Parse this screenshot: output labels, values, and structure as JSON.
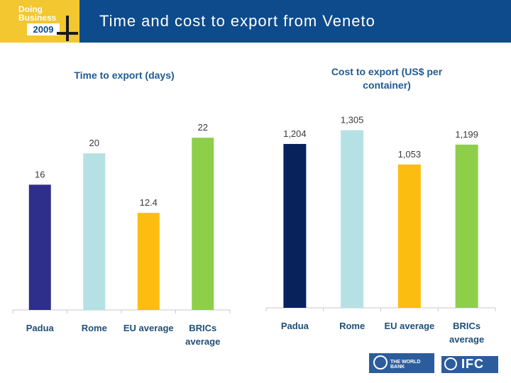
{
  "header": {
    "logo_line1": "Doing",
    "logo_line2": "Business",
    "logo_year": "2009",
    "title": "Time and cost to export from Veneto"
  },
  "chart_data": [
    {
      "type": "bar",
      "title": "Time to export (days)",
      "categories": [
        "Padua",
        "Rome",
        "EU average",
        "BRICs average"
      ],
      "values": [
        16,
        20,
        12.4,
        22
      ],
      "value_labels": [
        "16",
        "20",
        "12.4",
        "22"
      ],
      "colors": [
        "#2e2f8a",
        "#b6e1e4",
        "#fbbd10",
        "#8ecf4a"
      ],
      "ylim": [
        0,
        26
      ]
    },
    {
      "type": "bar",
      "title": "Cost to export (US$ per container)",
      "categories": [
        "Padua",
        "Rome",
        "EU average",
        "BRICs average"
      ],
      "values": [
        1204,
        1305,
        1053,
        1199
      ],
      "value_labels": [
        "1,204",
        "1,305",
        "1,053",
        "1,199"
      ],
      "colors": [
        "#08225c",
        "#b6e1e4",
        "#fbbd10",
        "#8ecf4a"
      ],
      "ylim": [
        0,
        1480
      ]
    }
  ],
  "footer": {
    "worldbank_text": "THE WORLD BANK",
    "ifc_text": "IFC"
  }
}
